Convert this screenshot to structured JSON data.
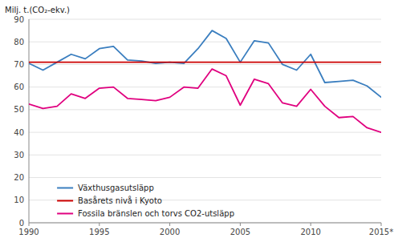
{
  "chart_data": {
    "type": "line",
    "ylabel": "Milj. t.(CO₂-ekv.)",
    "x": [
      1990,
      1991,
      1992,
      1993,
      1994,
      1995,
      1996,
      1997,
      1998,
      1999,
      2000,
      2001,
      2002,
      2003,
      2004,
      2005,
      2006,
      2007,
      2008,
      2009,
      2010,
      2011,
      2012,
      2013,
      2014,
      2015
    ],
    "series": [
      {
        "name": "Växthusgasutsläpp",
        "color": "#3a7ebf",
        "values": [
          70.5,
          67.5,
          71.0,
          74.5,
          72.5,
          77.0,
          78.0,
          72.0,
          71.5,
          70.5,
          71.0,
          70.5,
          77.0,
          85.0,
          81.5,
          71.0,
          80.5,
          79.5,
          70.0,
          67.5,
          74.5,
          62.0,
          62.5,
          63.0,
          60.5,
          55.5
        ]
      },
      {
        "name": "Basårets nivå i Kyoto",
        "color": "#cc0000",
        "values": [
          71.0,
          71.0,
          71.0,
          71.0,
          71.0,
          71.0,
          71.0,
          71.0,
          71.0,
          71.0,
          71.0,
          71.0,
          71.0,
          71.0,
          71.0,
          71.0,
          71.0,
          71.0,
          71.0,
          71.0,
          71.0,
          71.0,
          71.0,
          71.0,
          71.0,
          71.0
        ]
      },
      {
        "name": "Fossila bränslen och torvs CO2-utsläpp",
        "color": "#e0007f",
        "values": [
          52.5,
          50.5,
          51.5,
          57.0,
          55.0,
          59.5,
          60.0,
          55.0,
          54.5,
          54.0,
          55.5,
          60.0,
          59.5,
          68.0,
          65.0,
          52.0,
          63.5,
          61.5,
          53.0,
          51.5,
          59.0,
          51.5,
          46.5,
          47.0,
          42.0,
          40.0
        ]
      }
    ],
    "xlim": [
      1990,
      2015
    ],
    "xticks": [
      1990,
      1995,
      2000,
      2005,
      2010,
      {
        "value": 2015,
        "label": "2015*"
      }
    ],
    "ylim": [
      0,
      90
    ],
    "yticks": [
      0,
      10,
      20,
      30,
      40,
      50,
      60,
      70,
      80,
      90
    ],
    "grid": true,
    "legend": "lower left"
  }
}
